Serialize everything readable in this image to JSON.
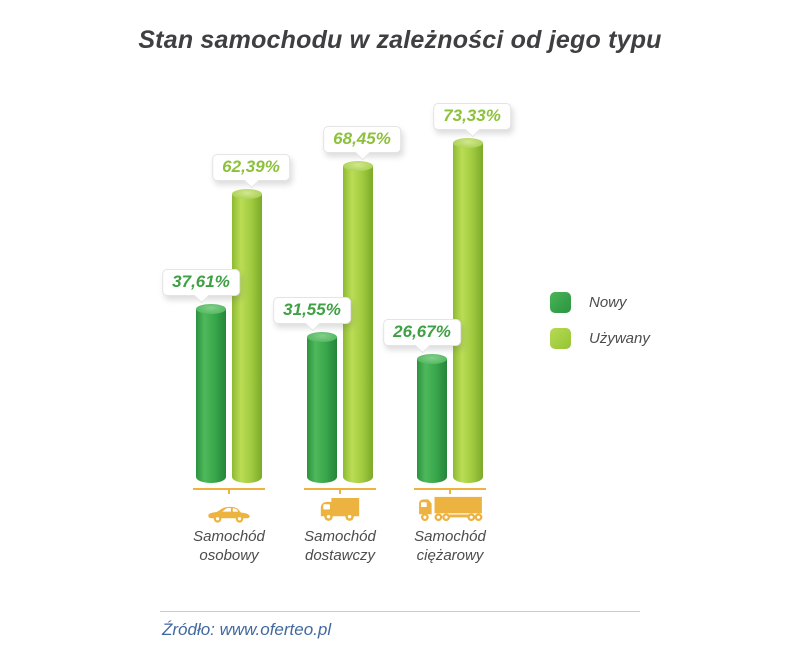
{
  "title": "Stan samochodu w zależności od jego typu",
  "chart_data": {
    "type": "bar",
    "title": "Stan samochodu w zależności od jego typu",
    "categories": [
      "Samochód osobowy",
      "Samochód dostawczy",
      "Samochód ciężarowy"
    ],
    "series": [
      {
        "name": "Nowy",
        "values": [
          37.61,
          31.55,
          26.67
        ],
        "labels": [
          "37,61%",
          "31,55%",
          "26,67%"
        ],
        "color": "#2f9e45"
      },
      {
        "name": "Używany",
        "values": [
          62.39,
          68.45,
          73.33
        ],
        "labels": [
          "62,39%",
          "68,45%",
          "73,33%"
        ],
        "color": "#a2cc3f"
      }
    ],
    "ylim": [
      0,
      80
    ],
    "grid": false,
    "legend_position": "right",
    "value_format": "percent with comma decimal separator",
    "bar_style": "3d cylinder",
    "accent_color": "#f0b23f"
  },
  "groups": [
    {
      "icon": "car",
      "label_line1": "Samochód",
      "label_line2": "osobowy"
    },
    {
      "icon": "van",
      "label_line1": "Samochód",
      "label_line2": "dostawczy"
    },
    {
      "icon": "truck",
      "label_line1": "Samochód",
      "label_line2": "ciężarowy"
    }
  ],
  "legend": {
    "items": [
      {
        "label": "Nowy",
        "color": "#2f9e45"
      },
      {
        "label": "Używany",
        "color": "#a2cc3f"
      }
    ]
  },
  "source": {
    "label": "Źródło: www.oferteo.pl",
    "color": "#41699f"
  }
}
